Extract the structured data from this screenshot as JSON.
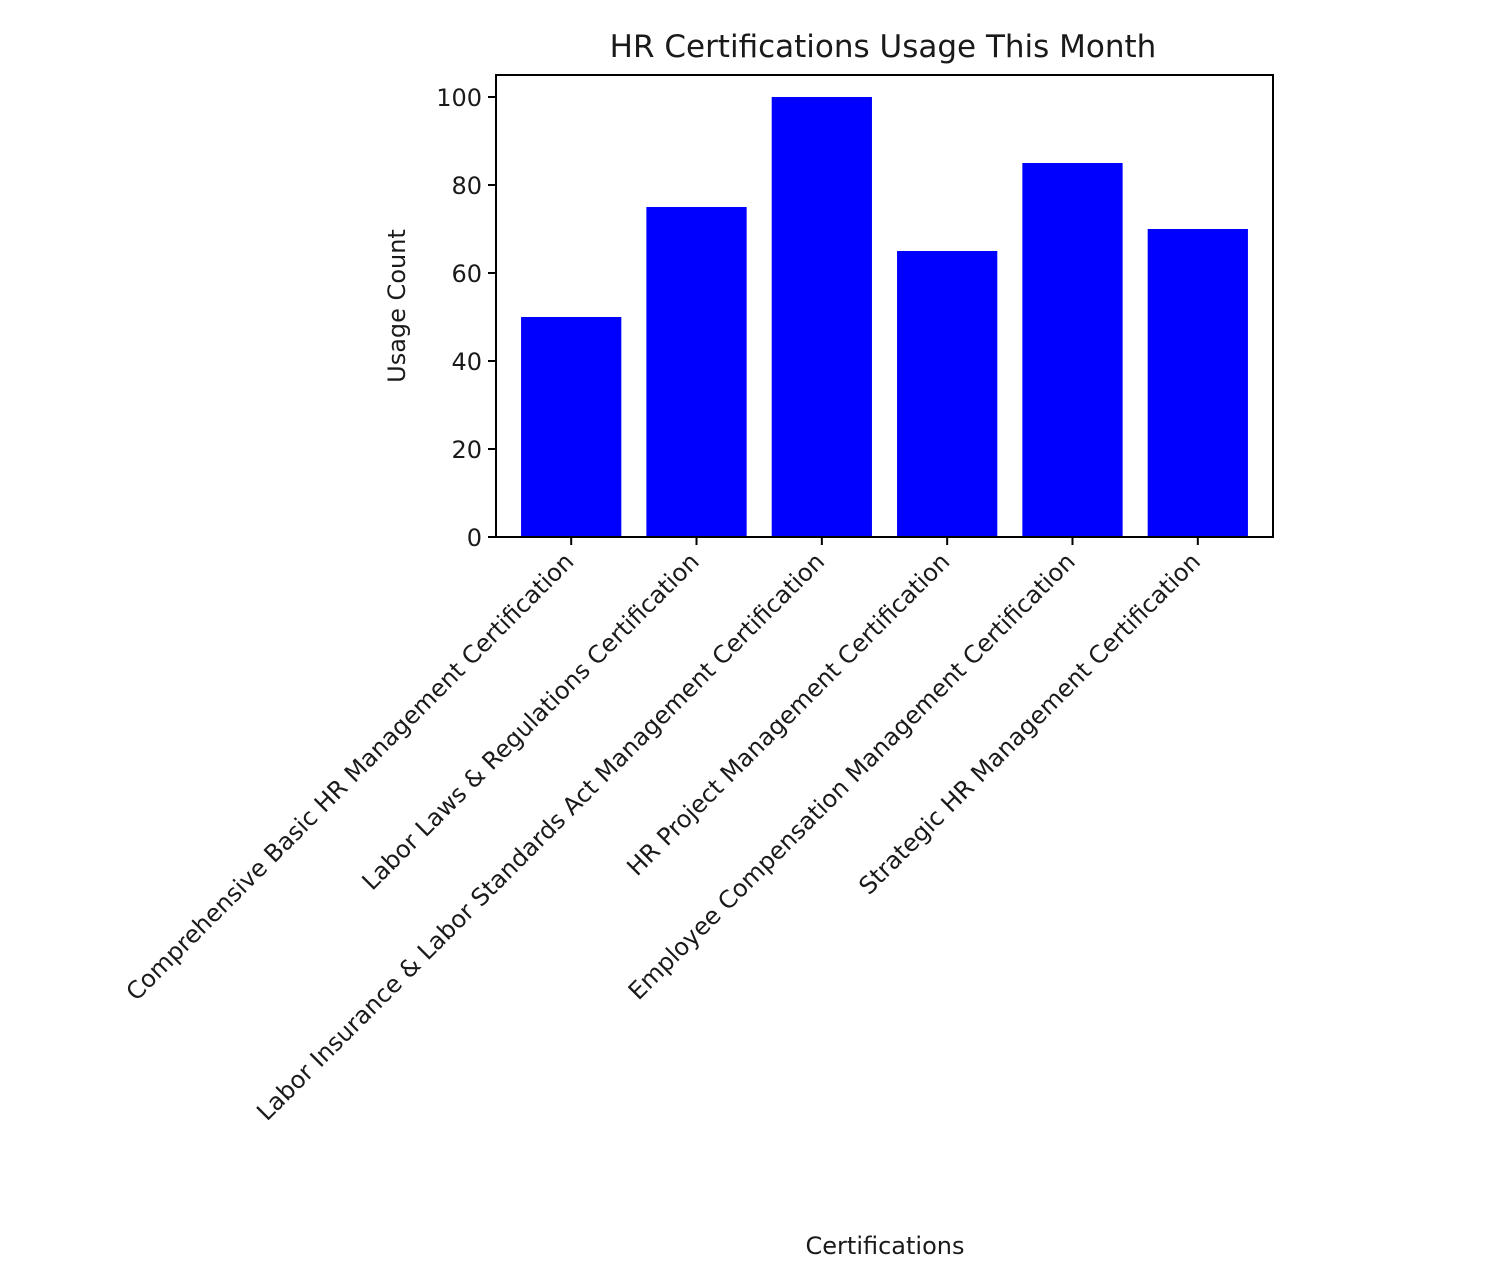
{
  "chart_data": {
    "type": "bar",
    "title": "HR Certifications Usage This Month",
    "xlabel": "Certifications",
    "ylabel": "Usage Count",
    "categories": [
      "Comprehensive Basic HR Management Certification",
      "Labor Laws & Regulations Certification",
      "Labor Insurance & Labor Standards Act Management Certification",
      "HR Project Management Certification",
      "Employee Compensation Management Certification",
      "Strategic HR Management Certification"
    ],
    "values": [
      50,
      75,
      100,
      65,
      85,
      70
    ],
    "ylim": [
      0,
      105
    ],
    "yticks": [
      0,
      20,
      40,
      60,
      80,
      100
    ],
    "bar_color": "#0000ff",
    "grid": false
  }
}
